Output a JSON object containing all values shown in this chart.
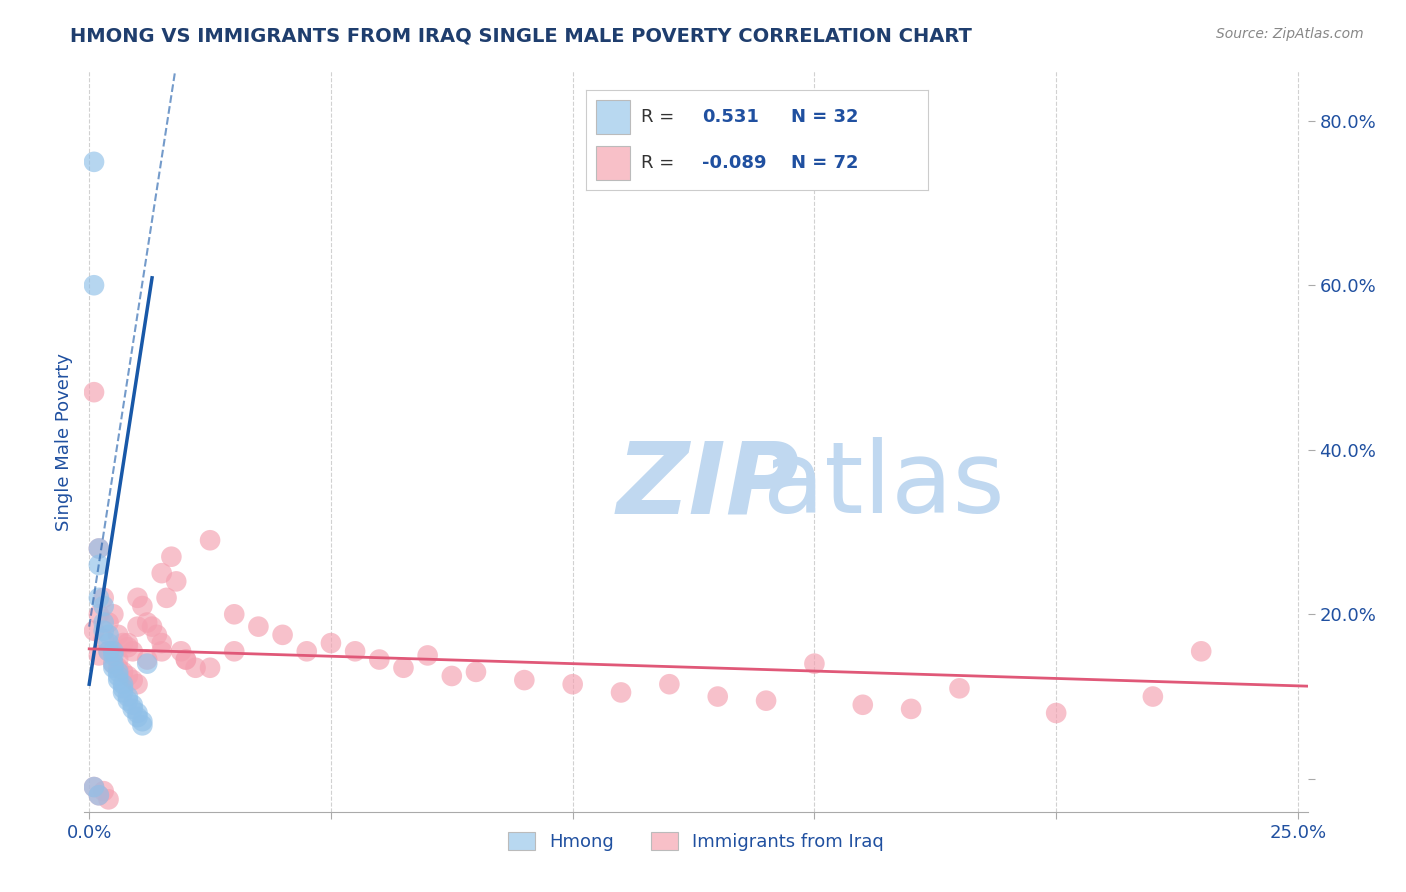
{
  "title": "HMONG VS IMMIGRANTS FROM IRAQ SINGLE MALE POVERTY CORRELATION CHART",
  "source": "Source: ZipAtlas.com",
  "ylabel": "Single Male Poverty",
  "xlim": [
    -0.001,
    0.252
  ],
  "ylim": [
    -0.04,
    0.86
  ],
  "xtick_positions": [
    0.0,
    0.05,
    0.1,
    0.15,
    0.2,
    0.25
  ],
  "xtick_labels": [
    "0.0%",
    "",
    "",
    "",
    "",
    "25.0%"
  ],
  "ytick_positions": [
    0.0,
    0.2,
    0.4,
    0.6,
    0.8
  ],
  "ytick_labels": [
    "",
    "20.0%",
    "40.0%",
    "60.0%",
    "80.0%"
  ],
  "hmong_R": 0.531,
  "hmong_N": 32,
  "iraq_R": -0.089,
  "iraq_N": 72,
  "scatter_blue": "#90C0E8",
  "scatter_pink": "#F4A0B0",
  "line_blue": "#1858A8",
  "line_pink": "#E05878",
  "legend_box_blue": "#B8D8F0",
  "legend_box_pink": "#F8C0C8",
  "background_color": "#FFFFFF",
  "grid_color": "#CCCCCC",
  "title_color": "#1F3E6E",
  "axis_label_color": "#2050A0",
  "watermark_zip_color": "#C0D8F0",
  "watermark_atlas_color": "#C0D8F0",
  "hmong_x": [
    0.001,
    0.001,
    0.002,
    0.002,
    0.002,
    0.003,
    0.003,
    0.003,
    0.004,
    0.004,
    0.004,
    0.005,
    0.005,
    0.005,
    0.005,
    0.006,
    0.006,
    0.006,
    0.007,
    0.007,
    0.007,
    0.008,
    0.008,
    0.009,
    0.009,
    0.01,
    0.01,
    0.011,
    0.011,
    0.012,
    0.001,
    0.002
  ],
  "hmong_y": [
    0.75,
    0.6,
    0.28,
    0.26,
    0.22,
    0.21,
    0.19,
    0.18,
    0.175,
    0.165,
    0.155,
    0.155,
    0.15,
    0.14,
    0.135,
    0.13,
    0.125,
    0.12,
    0.115,
    0.11,
    0.105,
    0.1,
    0.095,
    0.09,
    0.085,
    0.08,
    0.075,
    0.07,
    0.065,
    0.14,
    -0.01,
    -0.02
  ],
  "iraq_x": [
    0.001,
    0.001,
    0.002,
    0.002,
    0.002,
    0.003,
    0.003,
    0.004,
    0.004,
    0.005,
    0.005,
    0.005,
    0.006,
    0.006,
    0.007,
    0.007,
    0.008,
    0.008,
    0.009,
    0.009,
    0.01,
    0.01,
    0.011,
    0.012,
    0.012,
    0.013,
    0.014,
    0.015,
    0.015,
    0.016,
    0.017,
    0.018,
    0.019,
    0.02,
    0.022,
    0.025,
    0.03,
    0.035,
    0.04,
    0.045,
    0.05,
    0.055,
    0.06,
    0.065,
    0.07,
    0.075,
    0.08,
    0.09,
    0.1,
    0.11,
    0.12,
    0.13,
    0.14,
    0.15,
    0.16,
    0.17,
    0.18,
    0.2,
    0.22,
    0.23,
    0.001,
    0.002,
    0.003,
    0.004,
    0.005,
    0.006,
    0.008,
    0.01,
    0.015,
    0.02,
    0.025,
    0.03
  ],
  "iraq_y": [
    0.47,
    0.18,
    0.28,
    0.2,
    0.15,
    0.22,
    0.17,
    0.19,
    0.155,
    0.2,
    0.155,
    0.14,
    0.175,
    0.135,
    0.165,
    0.13,
    0.16,
    0.125,
    0.155,
    0.12,
    0.22,
    0.115,
    0.21,
    0.19,
    0.145,
    0.185,
    0.175,
    0.25,
    0.165,
    0.22,
    0.27,
    0.24,
    0.155,
    0.145,
    0.135,
    0.29,
    0.2,
    0.185,
    0.175,
    0.155,
    0.165,
    0.155,
    0.145,
    0.135,
    0.15,
    0.125,
    0.13,
    0.12,
    0.115,
    0.105,
    0.115,
    0.1,
    0.095,
    0.14,
    0.09,
    0.085,
    0.11,
    0.08,
    0.1,
    0.155,
    -0.01,
    -0.02,
    -0.015,
    -0.025,
    0.155,
    0.145,
    0.165,
    0.185,
    0.155,
    0.145,
    0.135,
    0.155
  ],
  "hmong_trend_x": [
    0.0,
    0.012
  ],
  "hmong_trend_y_start": 0.115,
  "hmong_trend_slope": 38.0,
  "iraq_trend_x": [
    0.0,
    0.252
  ],
  "iraq_trend_y_start": 0.158,
  "iraq_trend_slope": -0.18
}
